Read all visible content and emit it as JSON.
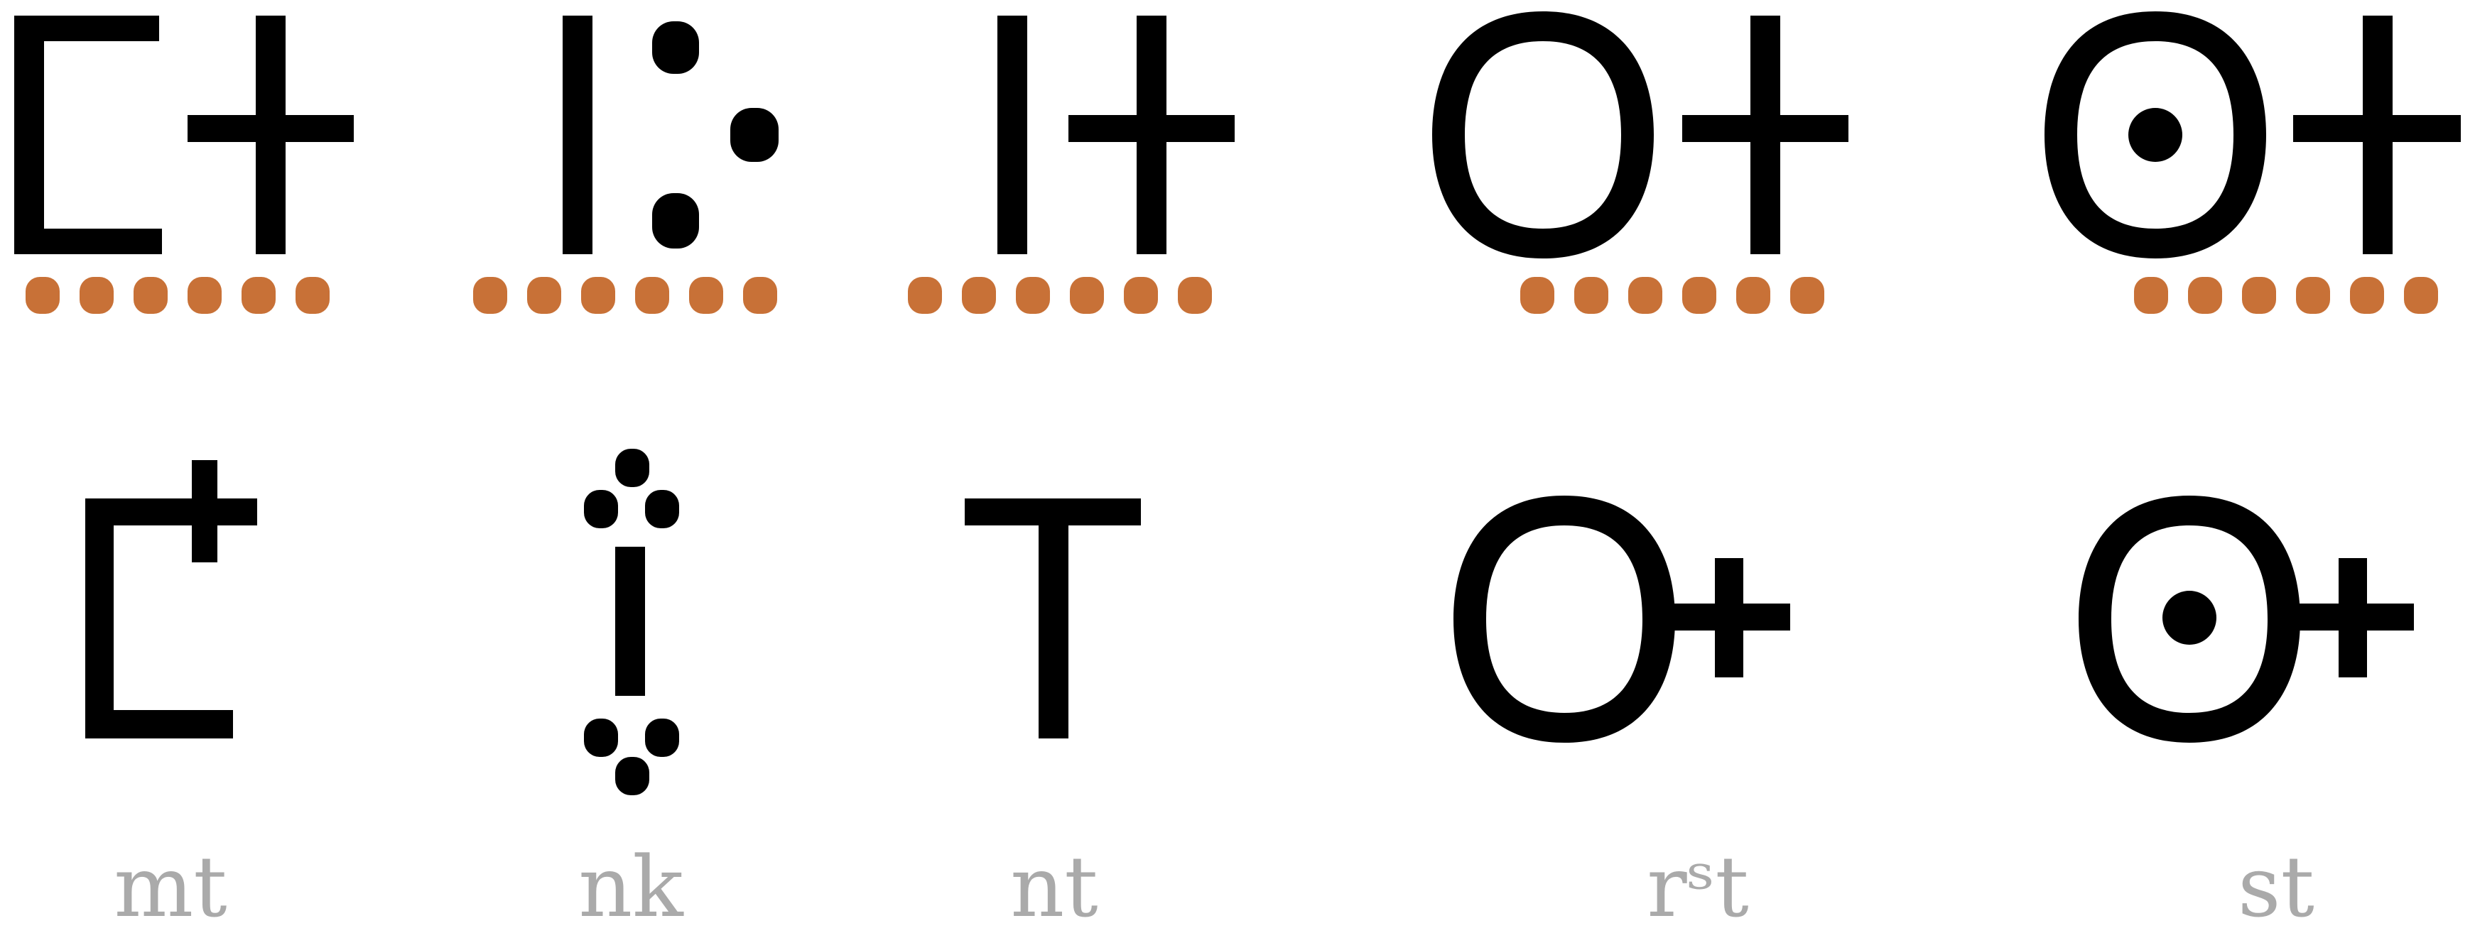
{
  "colors": {
    "glyph": "#000000",
    "dots": "#c87137",
    "caption": "#aaaaaa",
    "background": "#ffffff"
  },
  "glyph_pairs": [
    {
      "caption": "mt",
      "unjoined": [
        "bracket-glyph",
        "cross-glyph"
      ],
      "joined": "bracket-with-small-cross-glyph",
      "dot_count": 6
    },
    {
      "caption": "nk",
      "unjoined": [
        "vertical-bar-glyph",
        "three-dot-triangle-glyph"
      ],
      "joined": "bar-between-dot-triads-glyph",
      "dot_count": 6
    },
    {
      "caption": "nt",
      "unjoined": [
        "vertical-bar-glyph",
        "cross-glyph"
      ],
      "joined": "t-shape-glyph",
      "dot_count": 6
    },
    {
      "caption": "rˢt",
      "unjoined": [
        "ring-glyph",
        "cross-glyph"
      ],
      "joined": "ring-with-small-cross-glyph",
      "dot_count": 6
    },
    {
      "caption": "st",
      "unjoined": [
        "dotted-ring-glyph",
        "cross-glyph"
      ],
      "joined": "dotted-ring-with-small-cross-glyph",
      "dot_count": 6
    }
  ]
}
